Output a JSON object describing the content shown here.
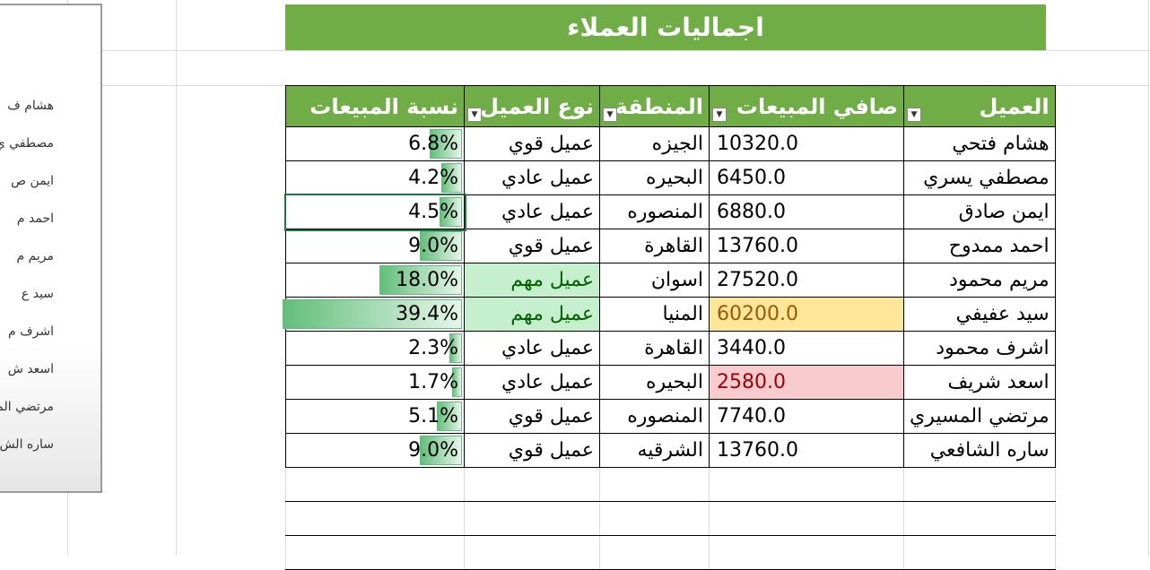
{
  "title": "اجماليات العملاء",
  "headers": [
    "العميل",
    "صافي المبيعات",
    "المنطقة",
    "نوع العميل",
    "نسبة المبيعات"
  ],
  "rows": [
    [
      "هشام فتحي",
      "10320.0",
      "الجيزه",
      "عميل قوي",
      "6.8%",
      6.8
    ],
    [
      "مصطفي يسري",
      "6450.0",
      "البحيره",
      "عميل عادي",
      "4.2%",
      4.2
    ],
    [
      "ايمن صادق",
      "6880.0",
      "المنصوره",
      "عميل عادي",
      "4.5%",
      4.5
    ],
    [
      "احمد ممدوح",
      "13760.0",
      "القاهرة",
      "عميل قوي",
      "9.0%",
      9.0
    ],
    [
      "مريم محمود",
      "27520.0",
      "اسوان",
      "عميل مهم",
      "18.0%",
      18.0
    ],
    [
      "سيد عفيفي",
      "60200.0",
      "المنيا",
      "عميل مهم",
      "39.4%",
      39.4
    ],
    [
      "اشرف محمود",
      "3440.0",
      "القاهرة",
      "عميل عادي",
      "2.3%",
      2.3
    ],
    [
      "اسعد شريف",
      "2580.0",
      "البحيره",
      "عميل عادي",
      "1.7%",
      1.7
    ],
    [
      "مرتضي المسيري",
      "7740.0",
      "المنصوره",
      "عميل قوي",
      "5.1%",
      5.1
    ],
    [
      "ساره الشافعي",
      "13760.0",
      "الشرقيه",
      "عميل قوي",
      "9.0%",
      9.0
    ]
  ],
  "panel_names": [
    "هشام ف",
    "مصطفي ي",
    "ايمن ص",
    "احمد م",
    "مريم م",
    "سيد ع",
    "اشرف م",
    "اسعد ش",
    "مرتضي المس",
    "ساره الش"
  ],
  "colors": {
    "header": "#70ad47",
    "max_fill": "#ffe699",
    "min_fill": "#f8cbcf",
    "important_fill": "#c6efce"
  }
}
